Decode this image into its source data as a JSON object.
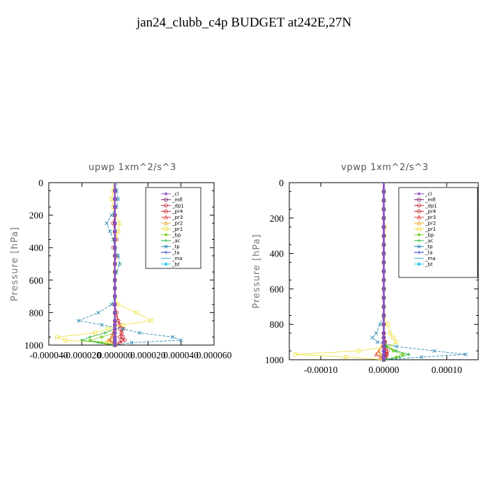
{
  "title": "jan24_clubb_c4p  BUDGET at242E,27N",
  "legend_entries": [
    "_cl",
    "_mfl",
    "_dp1",
    "_pr4",
    "_pr3",
    "_pr2",
    "_pr1",
    "_bp",
    "_ac",
    "_tp",
    "_ta",
    "_ma",
    "_bt"
  ],
  "series_colors": {
    "_cl": "#8a4fc8",
    "_mfl": "#7a1d6e",
    "_dp1": "#c8283c",
    "_pr4": "#c81e1e",
    "_pr3": "#e03c3c",
    "_pr2": "#f0a830",
    "_pr1": "#f0e040",
    "_bp": "#8ad23c",
    "_ac": "#2cb43c",
    "_tp": "#2c8cb4",
    "_ta": "#1e3cc8",
    "_ma": "#50b4c8",
    "_bt": "#28c8f0"
  },
  "chart_data": [
    {
      "type": "line",
      "title": "upwp   1xm^2/s^3",
      "ylabel": "Pressure [hPa]",
      "xlim": [
        -4e-05,
        6e-05
      ],
      "ylim": [
        1000,
        0
      ],
      "xticks": [
        "-0.000040",
        "-0.000020",
        "0.000000",
        "0.000020",
        "0.000040",
        "0.000060"
      ],
      "xtick_values": [
        -4e-05,
        -2e-05,
        0,
        2e-05,
        4e-05,
        6e-05
      ],
      "yticks": [
        0,
        200,
        400,
        600,
        800,
        1000
      ],
      "legend": "top-right inside",
      "grid": false,
      "y": [
        50,
        100,
        150,
        200,
        250,
        300,
        350,
        400,
        450,
        500,
        550,
        600,
        650,
        700,
        750,
        800,
        850,
        875,
        900,
        925,
        950,
        970,
        985,
        1000
      ],
      "series": [
        {
          "name": "_cl",
          "values": [
            0,
            0,
            0,
            0,
            0,
            0,
            0,
            0,
            0,
            0,
            0,
            0,
            0,
            0,
            0,
            0,
            0,
            0,
            0,
            0,
            0,
            0,
            0,
            0
          ]
        },
        {
          "name": "_mfl",
          "values": [
            0,
            0,
            0,
            0,
            0,
            0,
            0,
            0,
            0,
            0,
            0,
            0,
            0,
            0,
            0,
            0,
            0,
            0,
            0,
            0,
            0,
            0,
            0,
            0
          ]
        },
        {
          "name": "_dp1",
          "values": [
            0,
            0,
            0,
            0,
            0,
            0,
            0,
            0,
            0,
            0,
            0,
            0,
            0,
            0,
            0,
            0,
            2e-06,
            3e-06,
            3e-06,
            4e-06,
            5e-06,
            4e-06,
            3e-06,
            0
          ]
        },
        {
          "name": "_pr4",
          "values": [
            0,
            0,
            0,
            0,
            -1e-06,
            0,
            1e-06,
            -1e-06,
            1e-06,
            0,
            0,
            0,
            0,
            0,
            0,
            1e-06,
            2e-06,
            3e-06,
            5e-06,
            4e-06,
            3e-06,
            6e-06,
            3e-06,
            0
          ]
        },
        {
          "name": "_pr3",
          "values": [
            0,
            0,
            0,
            0,
            0,
            0,
            0,
            0,
            0,
            0,
            0,
            0,
            0,
            0,
            0,
            0,
            0,
            0,
            0,
            -1e-06,
            -2e-06,
            -3e-06,
            -1e-06,
            0
          ]
        },
        {
          "name": "_pr2",
          "values": [
            0,
            0,
            0,
            0,
            0,
            0,
            0,
            0,
            0,
            0,
            0,
            0,
            0,
            0,
            0,
            0,
            0,
            0,
            0,
            0,
            -2e-06,
            -4e-06,
            -2e-06,
            0
          ]
        },
        {
          "name": "_pr1",
          "values": [
            -1e-06,
            -2e-06,
            -1e-06,
            0,
            3e-06,
            2e-06,
            0,
            0,
            0,
            0,
            0,
            0,
            0,
            0,
            2e-06,
            1.3e-05,
            2.2e-05,
            5e-06,
            -4e-06,
            -1.2e-05,
            -3.5e-05,
            -3e-05,
            -5e-06,
            0
          ]
        },
        {
          "name": "_bp",
          "values": [
            0,
            0,
            0,
            0,
            0,
            0,
            0,
            0,
            0,
            0,
            0,
            0,
            0,
            0,
            0,
            0,
            0,
            0,
            0,
            0,
            -8e-06,
            -1.5e-05,
            -8e-06,
            0
          ]
        },
        {
          "name": "_ac",
          "values": [
            0,
            0,
            0,
            0,
            0,
            0,
            0,
            0,
            0,
            0,
            0,
            0,
            0,
            0,
            0,
            0,
            0,
            0,
            0,
            -6e-06,
            -1.5e-05,
            -2e-05,
            -1e-05,
            0
          ]
        },
        {
          "name": "_tp",
          "values": [
            1e-06,
            2e-06,
            1e-06,
            -2e-06,
            -5e-06,
            -3e-06,
            -1e-06,
            0,
            2e-06,
            3e-06,
            1e-06,
            0,
            0,
            0,
            -2e-06,
            -1e-05,
            -2.2e-05,
            -8e-06,
            5e-06,
            1.5e-05,
            3.5e-05,
            4e-05,
            1e-05,
            0
          ]
        },
        {
          "name": "_ta",
          "values": [
            0,
            0,
            0,
            0,
            0,
            0,
            0,
            0,
            0,
            0,
            0,
            0,
            0,
            0,
            0,
            0,
            0,
            0,
            0,
            0,
            0,
            0,
            0,
            0
          ]
        },
        {
          "name": "_ma",
          "values": [
            0,
            0,
            0,
            0,
            0,
            0,
            0,
            0,
            0,
            0,
            0,
            0,
            0,
            0,
            0,
            0,
            0,
            0,
            0,
            0,
            0,
            0,
            0,
            0
          ]
        },
        {
          "name": "_bt",
          "values": [
            0,
            0,
            0,
            0,
            0,
            0,
            0,
            0,
            0,
            0,
            0,
            0,
            0,
            0,
            0,
            0,
            0,
            0,
            0,
            0,
            0,
            0,
            0,
            0
          ]
        }
      ]
    },
    {
      "type": "line",
      "title": "vpwp   1xm^2/s^3",
      "ylabel": "Pressure [hPa]",
      "xlim": [
        -0.00015,
        0.00015
      ],
      "ylim": [
        1000,
        0
      ],
      "xticks": [
        "-0.00010",
        "0.00000",
        "0.00010"
      ],
      "xtick_values": [
        -0.0001,
        0,
        0.0001
      ],
      "yticks": [
        0,
        200,
        400,
        600,
        800,
        1000
      ],
      "legend": "top-right inside",
      "grid": false,
      "y": [
        50,
        100,
        150,
        200,
        250,
        300,
        350,
        400,
        450,
        500,
        550,
        600,
        650,
        700,
        750,
        800,
        850,
        875,
        900,
        925,
        950,
        970,
        985,
        1000
      ],
      "series": [
        {
          "name": "_cl",
          "values": [
            0,
            0,
            0,
            0,
            0,
            0,
            0,
            0,
            0,
            0,
            0,
            0,
            0,
            0,
            0,
            0,
            0,
            0,
            0,
            0,
            0,
            0,
            0,
            0
          ]
        },
        {
          "name": "_mfl",
          "values": [
            0,
            0,
            0,
            0,
            0,
            0,
            0,
            0,
            0,
            0,
            0,
            0,
            0,
            0,
            0,
            0,
            0,
            0,
            0,
            0,
            0,
            0,
            0,
            0
          ]
        },
        {
          "name": "_dp1",
          "values": [
            0,
            0,
            0,
            0,
            0,
            0,
            0,
            0,
            0,
            0,
            0,
            0,
            0,
            0,
            0,
            0,
            0,
            0,
            2e-06,
            4e-06,
            6e-06,
            5e-06,
            3e-06,
            0
          ]
        },
        {
          "name": "_pr4",
          "values": [
            0,
            0,
            0,
            0,
            0,
            0,
            0,
            0,
            0,
            0,
            0,
            0,
            0,
            0,
            0,
            0,
            0,
            0,
            1e-06,
            2e-06,
            3e-06,
            4e-06,
            2e-06,
            0
          ]
        },
        {
          "name": "_pr3",
          "values": [
            0,
            0,
            0,
            0,
            0,
            0,
            0,
            0,
            0,
            0,
            0,
            0,
            0,
            0,
            0,
            0,
            0,
            0,
            0,
            -2e-06,
            -8e-06,
            -1.2e-05,
            -5e-06,
            0
          ]
        },
        {
          "name": "_pr2",
          "values": [
            0,
            0,
            0,
            0,
            0,
            0,
            0,
            0,
            0,
            0,
            0,
            0,
            0,
            0,
            0,
            0,
            0,
            0,
            0,
            -3e-06,
            -8e-06,
            -6e-06,
            -2e-06,
            0
          ]
        },
        {
          "name": "_pr1",
          "values": [
            0,
            0,
            0,
            0,
            2e-06,
            1e-06,
            0,
            0,
            0,
            0,
            0,
            0,
            0,
            0,
            0,
            6e-06,
            1e-05,
            1.5e-05,
            2e-05,
            1e-05,
            -4e-05,
            -0.00014,
            -6e-05,
            0
          ]
        },
        {
          "name": "_bp",
          "values": [
            0,
            0,
            0,
            0,
            0,
            0,
            0,
            0,
            0,
            0,
            0,
            0,
            0,
            0,
            0,
            0,
            0,
            0,
            0,
            5e-06,
            1.5e-05,
            3e-05,
            2e-05,
            0
          ]
        },
        {
          "name": "_ac",
          "values": [
            0,
            0,
            0,
            0,
            0,
            0,
            0,
            0,
            0,
            0,
            0,
            0,
            0,
            0,
            0,
            0,
            0,
            0,
            0,
            4e-06,
            2e-05,
            4e-05,
            2.5e-05,
            0
          ]
        },
        {
          "name": "_tp",
          "values": [
            0,
            0,
            0,
            0,
            0,
            0,
            0,
            0,
            0,
            0,
            0,
            0,
            0,
            0,
            0,
            -6e-06,
            -1.2e-05,
            -1.8e-05,
            -1e-05,
            2e-05,
            8e-05,
            0.00013,
            6e-05,
            0
          ]
        },
        {
          "name": "_ta",
          "values": [
            0,
            0,
            0,
            0,
            0,
            0,
            0,
            0,
            0,
            0,
            0,
            0,
            0,
            0,
            0,
            0,
            0,
            0,
            0,
            0,
            0,
            0,
            0,
            0
          ]
        },
        {
          "name": "_ma",
          "values": [
            0,
            0,
            0,
            0,
            0,
            0,
            0,
            0,
            0,
            0,
            0,
            0,
            0,
            0,
            0,
            0,
            0,
            0,
            0,
            0,
            0,
            0,
            0,
            0
          ]
        },
        {
          "name": "_bt",
          "values": [
            0,
            0,
            0,
            0,
            0,
            0,
            0,
            0,
            0,
            0,
            0,
            0,
            0,
            0,
            0,
            0,
            0,
            0,
            0,
            0,
            0,
            0,
            0,
            0
          ]
        }
      ]
    }
  ]
}
